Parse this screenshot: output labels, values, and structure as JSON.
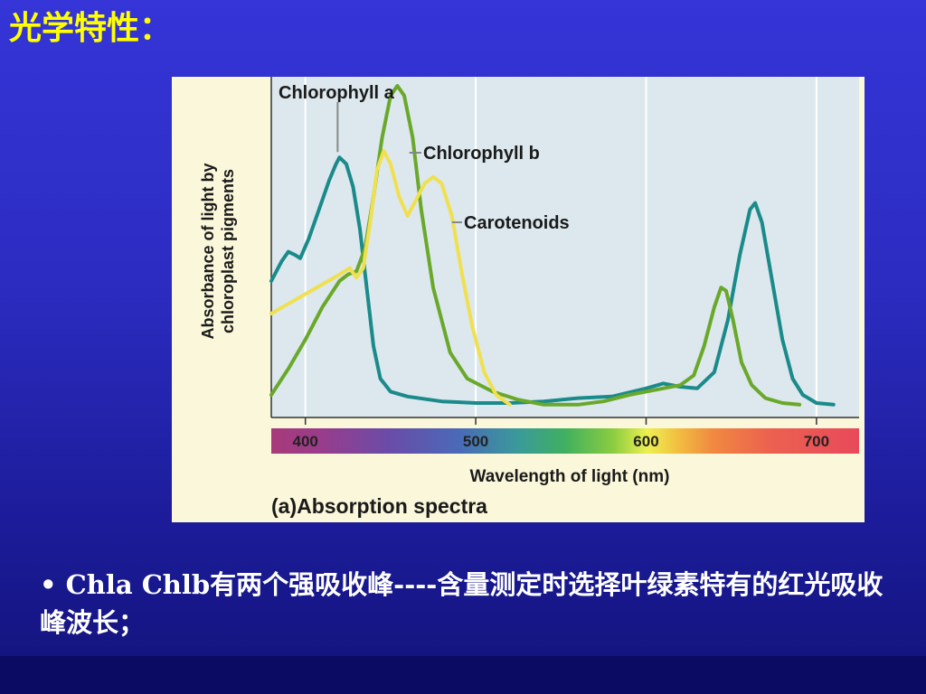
{
  "slide": {
    "title": "光学特性：",
    "bullet_mark": "•",
    "bullet_text": "Chla  Chlb有两个强吸收峰----含量测定时选择叶绿素特有的红光吸收峰波长；"
  },
  "chart_data": {
    "type": "line",
    "title": "",
    "panel_label": "(a)Absorption spectra",
    "xlabel": "Wavelength of light (nm)",
    "ylabel_line1": "Absorbance of light by",
    "ylabel_line2": "chloroplast pigments",
    "xlim": [
      380,
      725
    ],
    "ylim": [
      0,
      1
    ],
    "x_ticks": [
      400,
      500,
      600,
      700
    ],
    "x_tick_labels": [
      "400",
      "500",
      "600",
      "700"
    ],
    "grid": true,
    "spectrum_bar": true,
    "series": [
      {
        "name": "Chlorophyll a",
        "color": "#1a8a8a",
        "points": [
          [
            380,
            0.4
          ],
          [
            386,
            0.46
          ],
          [
            390,
            0.49
          ],
          [
            394,
            0.48
          ],
          [
            397,
            0.47
          ],
          [
            402,
            0.53
          ],
          [
            408,
            0.62
          ],
          [
            414,
            0.71
          ],
          [
            418,
            0.76
          ],
          [
            420,
            0.78
          ],
          [
            424,
            0.76
          ],
          [
            428,
            0.69
          ],
          [
            432,
            0.56
          ],
          [
            436,
            0.38
          ],
          [
            440,
            0.2
          ],
          [
            444,
            0.1
          ],
          [
            450,
            0.06
          ],
          [
            460,
            0.045
          ],
          [
            480,
            0.03
          ],
          [
            500,
            0.025
          ],
          [
            520,
            0.025
          ],
          [
            540,
            0.03
          ],
          [
            560,
            0.04
          ],
          [
            580,
            0.045
          ],
          [
            600,
            0.07
          ],
          [
            610,
            0.085
          ],
          [
            620,
            0.075
          ],
          [
            630,
            0.07
          ],
          [
            640,
            0.12
          ],
          [
            648,
            0.28
          ],
          [
            655,
            0.48
          ],
          [
            661,
            0.62
          ],
          [
            664,
            0.64
          ],
          [
            668,
            0.58
          ],
          [
            674,
            0.4
          ],
          [
            680,
            0.22
          ],
          [
            686,
            0.1
          ],
          [
            692,
            0.05
          ],
          [
            700,
            0.025
          ],
          [
            710,
            0.02
          ]
        ]
      },
      {
        "name": "Chlorophyll b",
        "color": "#6aa82a",
        "points": [
          [
            380,
            0.05
          ],
          [
            390,
            0.13
          ],
          [
            400,
            0.22
          ],
          [
            410,
            0.32
          ],
          [
            420,
            0.4
          ],
          [
            425,
            0.42
          ],
          [
            430,
            0.43
          ],
          [
            435,
            0.5
          ],
          [
            440,
            0.66
          ],
          [
            445,
            0.84
          ],
          [
            450,
            0.97
          ],
          [
            454,
            1.0
          ],
          [
            458,
            0.97
          ],
          [
            463,
            0.84
          ],
          [
            468,
            0.62
          ],
          [
            475,
            0.38
          ],
          [
            485,
            0.18
          ],
          [
            495,
            0.1
          ],
          [
            510,
            0.06
          ],
          [
            525,
            0.035
          ],
          [
            540,
            0.02
          ],
          [
            560,
            0.02
          ],
          [
            575,
            0.03
          ],
          [
            590,
            0.05
          ],
          [
            600,
            0.06
          ],
          [
            610,
            0.07
          ],
          [
            620,
            0.08
          ],
          [
            628,
            0.11
          ],
          [
            634,
            0.2
          ],
          [
            640,
            0.32
          ],
          [
            644,
            0.38
          ],
          [
            647,
            0.37
          ],
          [
            651,
            0.28
          ],
          [
            656,
            0.15
          ],
          [
            662,
            0.08
          ],
          [
            670,
            0.04
          ],
          [
            680,
            0.025
          ],
          [
            690,
            0.02
          ]
        ]
      },
      {
        "name": "Carotenoids",
        "color": "#f0e050",
        "points": [
          [
            380,
            0.3
          ],
          [
            390,
            0.33
          ],
          [
            400,
            0.36
          ],
          [
            410,
            0.39
          ],
          [
            420,
            0.42
          ],
          [
            426,
            0.44
          ],
          [
            430,
            0.41
          ],
          [
            434,
            0.44
          ],
          [
            438,
            0.58
          ],
          [
            442,
            0.74
          ],
          [
            446,
            0.8
          ],
          [
            450,
            0.76
          ],
          [
            455,
            0.66
          ],
          [
            460,
            0.6
          ],
          [
            464,
            0.64
          ],
          [
            470,
            0.7
          ],
          [
            475,
            0.72
          ],
          [
            480,
            0.7
          ],
          [
            486,
            0.6
          ],
          [
            492,
            0.42
          ],
          [
            498,
            0.26
          ],
          [
            505,
            0.12
          ],
          [
            512,
            0.05
          ],
          [
            520,
            0.02
          ]
        ]
      }
    ]
  }
}
